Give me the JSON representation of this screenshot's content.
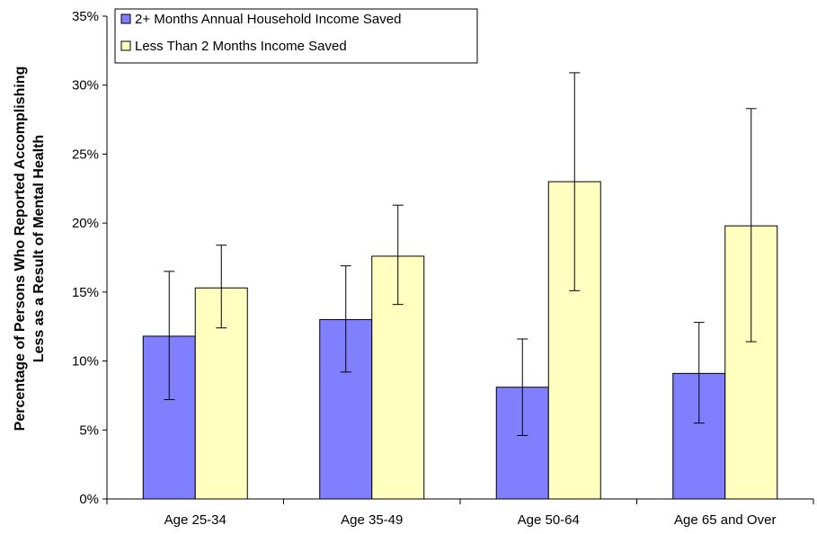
{
  "chart_data": {
    "type": "bar",
    "title": "",
    "xlabel": "",
    "ylabel_lines": [
      "Percentage of Persons Who Reported Accomplishing",
      "Less as a Result of Mental Health"
    ],
    "ylim": [
      0,
      35
    ],
    "yticks": [
      0,
      5,
      10,
      15,
      20,
      25,
      30,
      35
    ],
    "ytick_suffix": "%",
    "grid": false,
    "legend_position": "top-left",
    "categories": [
      "Age 25-34",
      "Age 35-49",
      "Age 50-64",
      "Age 65 and Over"
    ],
    "series": [
      {
        "name": "2+ Months Annual Household Income Saved",
        "color": "#8080ff",
        "values": [
          11.8,
          13.0,
          8.1,
          9.1
        ],
        "error_low": [
          7.2,
          9.2,
          4.6,
          5.5
        ],
        "error_high": [
          16.5,
          16.9,
          11.6,
          12.8
        ]
      },
      {
        "name": "Less Than 2 Months Income Saved",
        "color": "#ffffc0",
        "values": [
          15.3,
          17.6,
          23.0,
          19.8
        ],
        "error_low": [
          12.4,
          14.1,
          15.1,
          11.4
        ],
        "error_high": [
          18.4,
          21.3,
          30.9,
          28.3
        ]
      }
    ]
  }
}
